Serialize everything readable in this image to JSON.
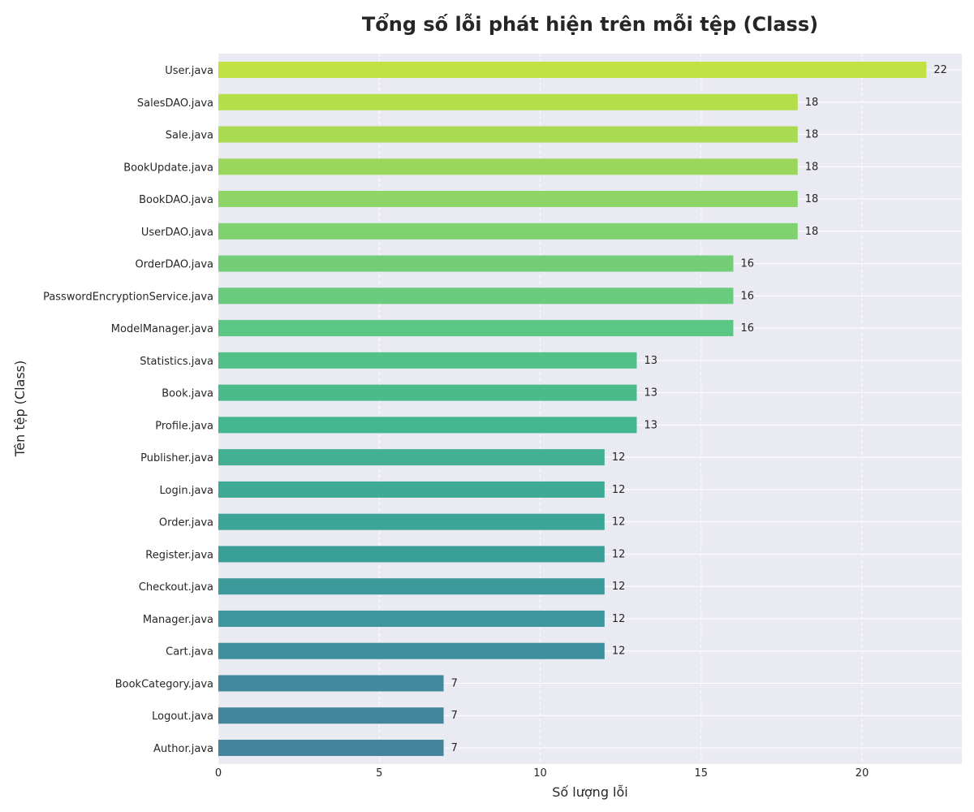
{
  "chart_data": {
    "type": "bar",
    "orientation": "horizontal",
    "title": "Tổng số lỗi phát hiện trên mỗi tệp (Class)",
    "xlabel": "Số lượng lỗi",
    "ylabel": "Tên tệp (Class)",
    "categories": [
      "User.java",
      "SalesDAO.java",
      "Sale.java",
      "BookUpdate.java",
      "BookDAO.java",
      "UserDAO.java",
      "OrderDAO.java",
      "PasswordEncryptionService.java",
      "ModelManager.java",
      "Statistics.java",
      "Book.java",
      "Profile.java",
      "Publisher.java",
      "Login.java",
      "Order.java",
      "Register.java",
      "Checkout.java",
      "Manager.java",
      "Cart.java",
      "BookCategory.java",
      "Logout.java",
      "Author.java"
    ],
    "values": [
      22,
      18,
      18,
      18,
      18,
      18,
      16,
      16,
      16,
      13,
      13,
      13,
      12,
      12,
      12,
      12,
      12,
      12,
      12,
      7,
      7,
      7
    ],
    "xlim": [
      0,
      23.1
    ],
    "xticks": [
      0,
      5,
      10,
      15,
      20
    ],
    "grid": true,
    "colors": [
      "#c2e142",
      "#b4de4a",
      "#a8db52",
      "#9bd75c",
      "#8dd565",
      "#80d16f",
      "#73ce77",
      "#68cb7e",
      "#5cc684",
      "#53c088",
      "#4cbb8b",
      "#44b68f",
      "#42b091",
      "#3eaa95",
      "#3ba597",
      "#3a9f99",
      "#3c9a9b",
      "#3d959d",
      "#3f909e",
      "#418a9e",
      "#43869c",
      "#45849a"
    ],
    "background": "#eaeaf2"
  }
}
